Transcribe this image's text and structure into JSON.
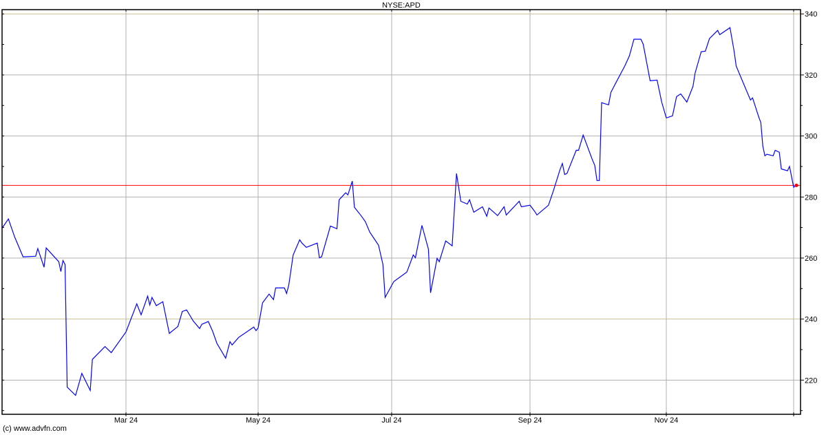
{
  "chart_data": {
    "type": "line",
    "title": "NYSE:APD",
    "xlabel": "",
    "ylabel": "",
    "ylim": [
      208.8,
      341.4
    ],
    "grid": true,
    "y_ticks": [
      220,
      240,
      260,
      280,
      300,
      320,
      340
    ],
    "x_ticks": [
      {
        "label": "Mar 24",
        "date": "2024-03-01"
      },
      {
        "label": "May 24",
        "date": "2024-05-01"
      },
      {
        "label": "Jul 24",
        "date": "2024-07-01"
      },
      {
        "label": "Sep 24",
        "date": "2024-09-03"
      },
      {
        "label": "Nov 24",
        "date": "2024-11-01"
      }
    ],
    "last_price": 283.8,
    "colors": {
      "line": "#0000ff",
      "last_price_line": "#ff0000",
      "grid": "#b0b0b0",
      "grid_highlight": "#c8c090"
    },
    "series": [
      {
        "points": [
          [
            "2024-01-02",
            269.8
          ],
          [
            "2024-01-05",
            272.8
          ],
          [
            "2024-01-08",
            266.9
          ],
          [
            "2024-01-12",
            260.4
          ],
          [
            "2024-01-18",
            260.6
          ],
          [
            "2024-01-19",
            263.1
          ],
          [
            "2024-01-22",
            257.0
          ],
          [
            "2024-01-23",
            263.3
          ],
          [
            "2024-01-29",
            258.8
          ],
          [
            "2024-01-30",
            255.6
          ],
          [
            "2024-01-31",
            259.2
          ],
          [
            "2024-02-01",
            257.9
          ],
          [
            "2024-02-02",
            217.7
          ],
          [
            "2024-02-06",
            215.0
          ],
          [
            "2024-02-09",
            222.2
          ],
          [
            "2024-02-13",
            216.6
          ],
          [
            "2024-02-14",
            226.8
          ],
          [
            "2024-02-20",
            231.0
          ],
          [
            "2024-02-23",
            229.0
          ],
          [
            "2024-03-01",
            235.8
          ],
          [
            "2024-03-06",
            245.0
          ],
          [
            "2024-03-08",
            241.4
          ],
          [
            "2024-03-11",
            247.5
          ],
          [
            "2024-03-12",
            244.6
          ],
          [
            "2024-03-13",
            247.1
          ],
          [
            "2024-03-15",
            244.4
          ],
          [
            "2024-03-18",
            245.7
          ],
          [
            "2024-03-21",
            235.3
          ],
          [
            "2024-03-25",
            237.6
          ],
          [
            "2024-03-27",
            242.5
          ],
          [
            "2024-03-29",
            243.0
          ],
          [
            "2024-04-01",
            239.4
          ],
          [
            "2024-04-04",
            236.9
          ],
          [
            "2024-04-05",
            238.3
          ],
          [
            "2024-04-08",
            239.2
          ],
          [
            "2024-04-10",
            236.0
          ],
          [
            "2024-04-12",
            232.0
          ],
          [
            "2024-04-16",
            227.2
          ],
          [
            "2024-04-18",
            232.6
          ],
          [
            "2024-04-19",
            231.5
          ],
          [
            "2024-04-22",
            234.0
          ],
          [
            "2024-04-29",
            237.4
          ],
          [
            "2024-04-30",
            236.2
          ],
          [
            "2024-05-01",
            237.1
          ],
          [
            "2024-05-03",
            245.3
          ],
          [
            "2024-05-06",
            248.2
          ],
          [
            "2024-05-08",
            246.4
          ],
          [
            "2024-05-09",
            250.2
          ],
          [
            "2024-05-13",
            250.2
          ],
          [
            "2024-05-14",
            248.4
          ],
          [
            "2024-05-15",
            251.1
          ],
          [
            "2024-05-17",
            261.0
          ],
          [
            "2024-05-20",
            266.0
          ],
          [
            "2024-05-21",
            264.9
          ],
          [
            "2024-05-23",
            263.5
          ],
          [
            "2024-05-28",
            264.9
          ],
          [
            "2024-05-29",
            260.1
          ],
          [
            "2024-05-30",
            260.4
          ],
          [
            "2024-06-03",
            270.5
          ],
          [
            "2024-06-06",
            269.6
          ],
          [
            "2024-06-07",
            279.1
          ],
          [
            "2024-06-10",
            281.4
          ],
          [
            "2024-06-11",
            280.7
          ],
          [
            "2024-06-13",
            285.2
          ],
          [
            "2024-06-14",
            276.6
          ],
          [
            "2024-06-17",
            273.9
          ],
          [
            "2024-06-19",
            271.9
          ],
          [
            "2024-06-21",
            268.5
          ],
          [
            "2024-06-25",
            264.2
          ],
          [
            "2024-06-27",
            257.9
          ],
          [
            "2024-06-28",
            247.1
          ],
          [
            "2024-07-02",
            252.3
          ],
          [
            "2024-07-08",
            255.4
          ],
          [
            "2024-07-11",
            261.0
          ],
          [
            "2024-07-12",
            260.1
          ],
          [
            "2024-07-15",
            270.7
          ],
          [
            "2024-07-18",
            262.9
          ],
          [
            "2024-07-19",
            248.6
          ],
          [
            "2024-07-22",
            259.9
          ],
          [
            "2024-07-23",
            258.8
          ],
          [
            "2024-07-26",
            265.6
          ],
          [
            "2024-07-29",
            264.0
          ],
          [
            "2024-07-31",
            287.7
          ],
          [
            "2024-08-02",
            278.6
          ],
          [
            "2024-08-05",
            277.7
          ],
          [
            "2024-08-06",
            279.1
          ],
          [
            "2024-08-08",
            275.0
          ],
          [
            "2024-08-12",
            276.8
          ],
          [
            "2024-08-14",
            273.7
          ],
          [
            "2024-08-15",
            276.4
          ],
          [
            "2024-08-19",
            273.9
          ],
          [
            "2024-08-22",
            276.8
          ],
          [
            "2024-08-23",
            274.1
          ],
          [
            "2024-08-29",
            278.6
          ],
          [
            "2024-08-30",
            276.8
          ],
          [
            "2024-09-03",
            277.3
          ],
          [
            "2024-09-05",
            275.3
          ],
          [
            "2024-09-06",
            274.1
          ],
          [
            "2024-09-11",
            277.3
          ],
          [
            "2024-09-13",
            281.8
          ],
          [
            "2024-09-16",
            289.0
          ],
          [
            "2024-09-17",
            291.0
          ],
          [
            "2024-09-18",
            287.4
          ],
          [
            "2024-09-19",
            287.7
          ],
          [
            "2024-09-23",
            295.3
          ],
          [
            "2024-09-24",
            295.3
          ],
          [
            "2024-09-26",
            300.3
          ],
          [
            "2024-09-30",
            292.2
          ],
          [
            "2024-10-01",
            290.4
          ],
          [
            "2024-10-02",
            285.4
          ],
          [
            "2024-10-03",
            285.4
          ],
          [
            "2024-10-04",
            310.9
          ],
          [
            "2024-10-07",
            310.2
          ],
          [
            "2024-10-08",
            314.3
          ],
          [
            "2024-10-10",
            317.2
          ],
          [
            "2024-10-14",
            322.9
          ],
          [
            "2024-10-16",
            326.2
          ],
          [
            "2024-10-18",
            331.7
          ],
          [
            "2024-10-21",
            331.7
          ],
          [
            "2024-10-22",
            330.1
          ],
          [
            "2024-10-25",
            318.1
          ],
          [
            "2024-10-28",
            318.3
          ],
          [
            "2024-10-30",
            311.1
          ],
          [
            "2024-11-01",
            305.9
          ],
          [
            "2024-11-04",
            306.6
          ],
          [
            "2024-11-06",
            312.9
          ],
          [
            "2024-11-08",
            313.8
          ],
          [
            "2024-11-11",
            311.1
          ],
          [
            "2024-11-14",
            316.3
          ],
          [
            "2024-11-15",
            320.6
          ],
          [
            "2024-11-18",
            327.6
          ],
          [
            "2024-11-20",
            327.8
          ],
          [
            "2024-11-22",
            331.9
          ],
          [
            "2024-11-26",
            334.6
          ],
          [
            "2024-11-27",
            333.2
          ],
          [
            "2024-12-02",
            335.5
          ],
          [
            "2024-12-04",
            327.8
          ],
          [
            "2024-12-05",
            322.9
          ],
          [
            "2024-12-09",
            316.5
          ],
          [
            "2024-12-12",
            311.8
          ],
          [
            "2024-12-13",
            312.5
          ],
          [
            "2024-12-16",
            306.2
          ],
          [
            "2024-12-17",
            304.4
          ],
          [
            "2024-12-18",
            296.7
          ],
          [
            "2024-12-19",
            293.5
          ],
          [
            "2024-12-20",
            294.0
          ],
          [
            "2024-12-23",
            293.5
          ],
          [
            "2024-12-24",
            295.3
          ],
          [
            "2024-12-26",
            294.7
          ],
          [
            "2024-12-27",
            289.2
          ],
          [
            "2024-12-30",
            288.6
          ],
          [
            "2024-12-31",
            290.0
          ],
          [
            "2025-01-02",
            283.2
          ],
          [
            "2025-01-03",
            283.8
          ]
        ]
      }
    ]
  },
  "footer": {
    "copyright": "(c) www.advfn.com"
  }
}
